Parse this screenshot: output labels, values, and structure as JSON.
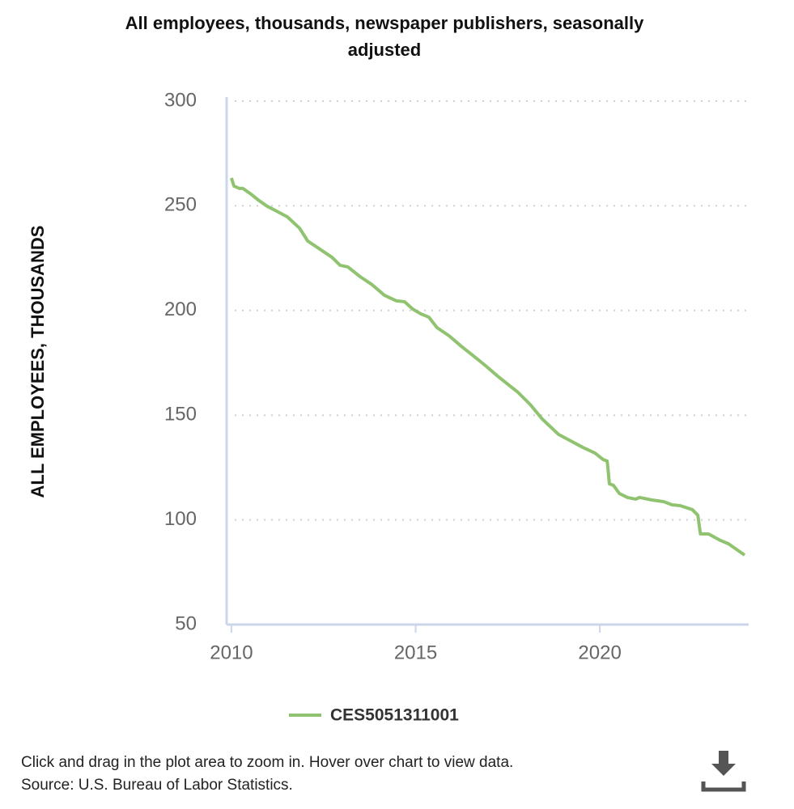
{
  "chart_data": {
    "type": "line",
    "title": [
      "All employees, thousands, newspaper publishers, seasonally",
      "adjusted"
    ],
    "y_label": "ALL EMPLOYEES, THOUSANDS",
    "x": [
      2010.0,
      2010.07,
      2010.22,
      2010.31,
      2010.53,
      2010.75,
      2010.97,
      2011.19,
      2011.52,
      2011.85,
      2012.07,
      2012.4,
      2012.73,
      2012.95,
      2013.16,
      2013.49,
      2013.82,
      2014.15,
      2014.48,
      2014.7,
      2014.92,
      2015.14,
      2015.36,
      2015.58,
      2015.91,
      2016.24,
      2016.57,
      2016.9,
      2017.23,
      2017.45,
      2017.78,
      2018.11,
      2018.44,
      2018.88,
      2019.21,
      2019.54,
      2019.87,
      2020.09,
      2020.2,
      2020.26,
      2020.37,
      2020.53,
      2020.75,
      2020.97,
      2021.08,
      2021.41,
      2021.74,
      2021.96,
      2022.18,
      2022.51,
      2022.66,
      2022.73,
      2022.95,
      2023.27,
      2023.49,
      2023.93
    ],
    "series": [
      {
        "name": "CES5051311001",
        "color": "#90c36f",
        "values": [
          263.3,
          259.4,
          258.3,
          258.3,
          255.6,
          252.5,
          249.8,
          247.8,
          244.7,
          239.3,
          233.2,
          229.3,
          225.4,
          221.6,
          220.8,
          216.2,
          212.3,
          207.3,
          204.6,
          204.2,
          200.7,
          198.4,
          196.8,
          191.8,
          187.9,
          182.9,
          178.3,
          173.6,
          168.6,
          165.5,
          160.9,
          155.1,
          148.1,
          140.8,
          137.7,
          134.6,
          131.9,
          128.8,
          128.1,
          117.2,
          116.5,
          112.6,
          110.7,
          109.9,
          110.7,
          109.5,
          108.7,
          107.2,
          106.8,
          104.9,
          102.2,
          93.3,
          93.3,
          90.2,
          88.6,
          83.2
        ]
      }
    ],
    "xlim": [
      2009.87,
      2024.04
    ],
    "xticks": [
      2010,
      2015,
      2020
    ],
    "ylim": [
      50,
      300
    ],
    "yticks": [
      50,
      100,
      150,
      200,
      250,
      300
    ],
    "grid": true
  },
  "footer": [
    "Click and drag in the plot area to zoom in. Hover over chart to view data.",
    "Source: U.S. Bureau of Labor Statistics."
  ]
}
